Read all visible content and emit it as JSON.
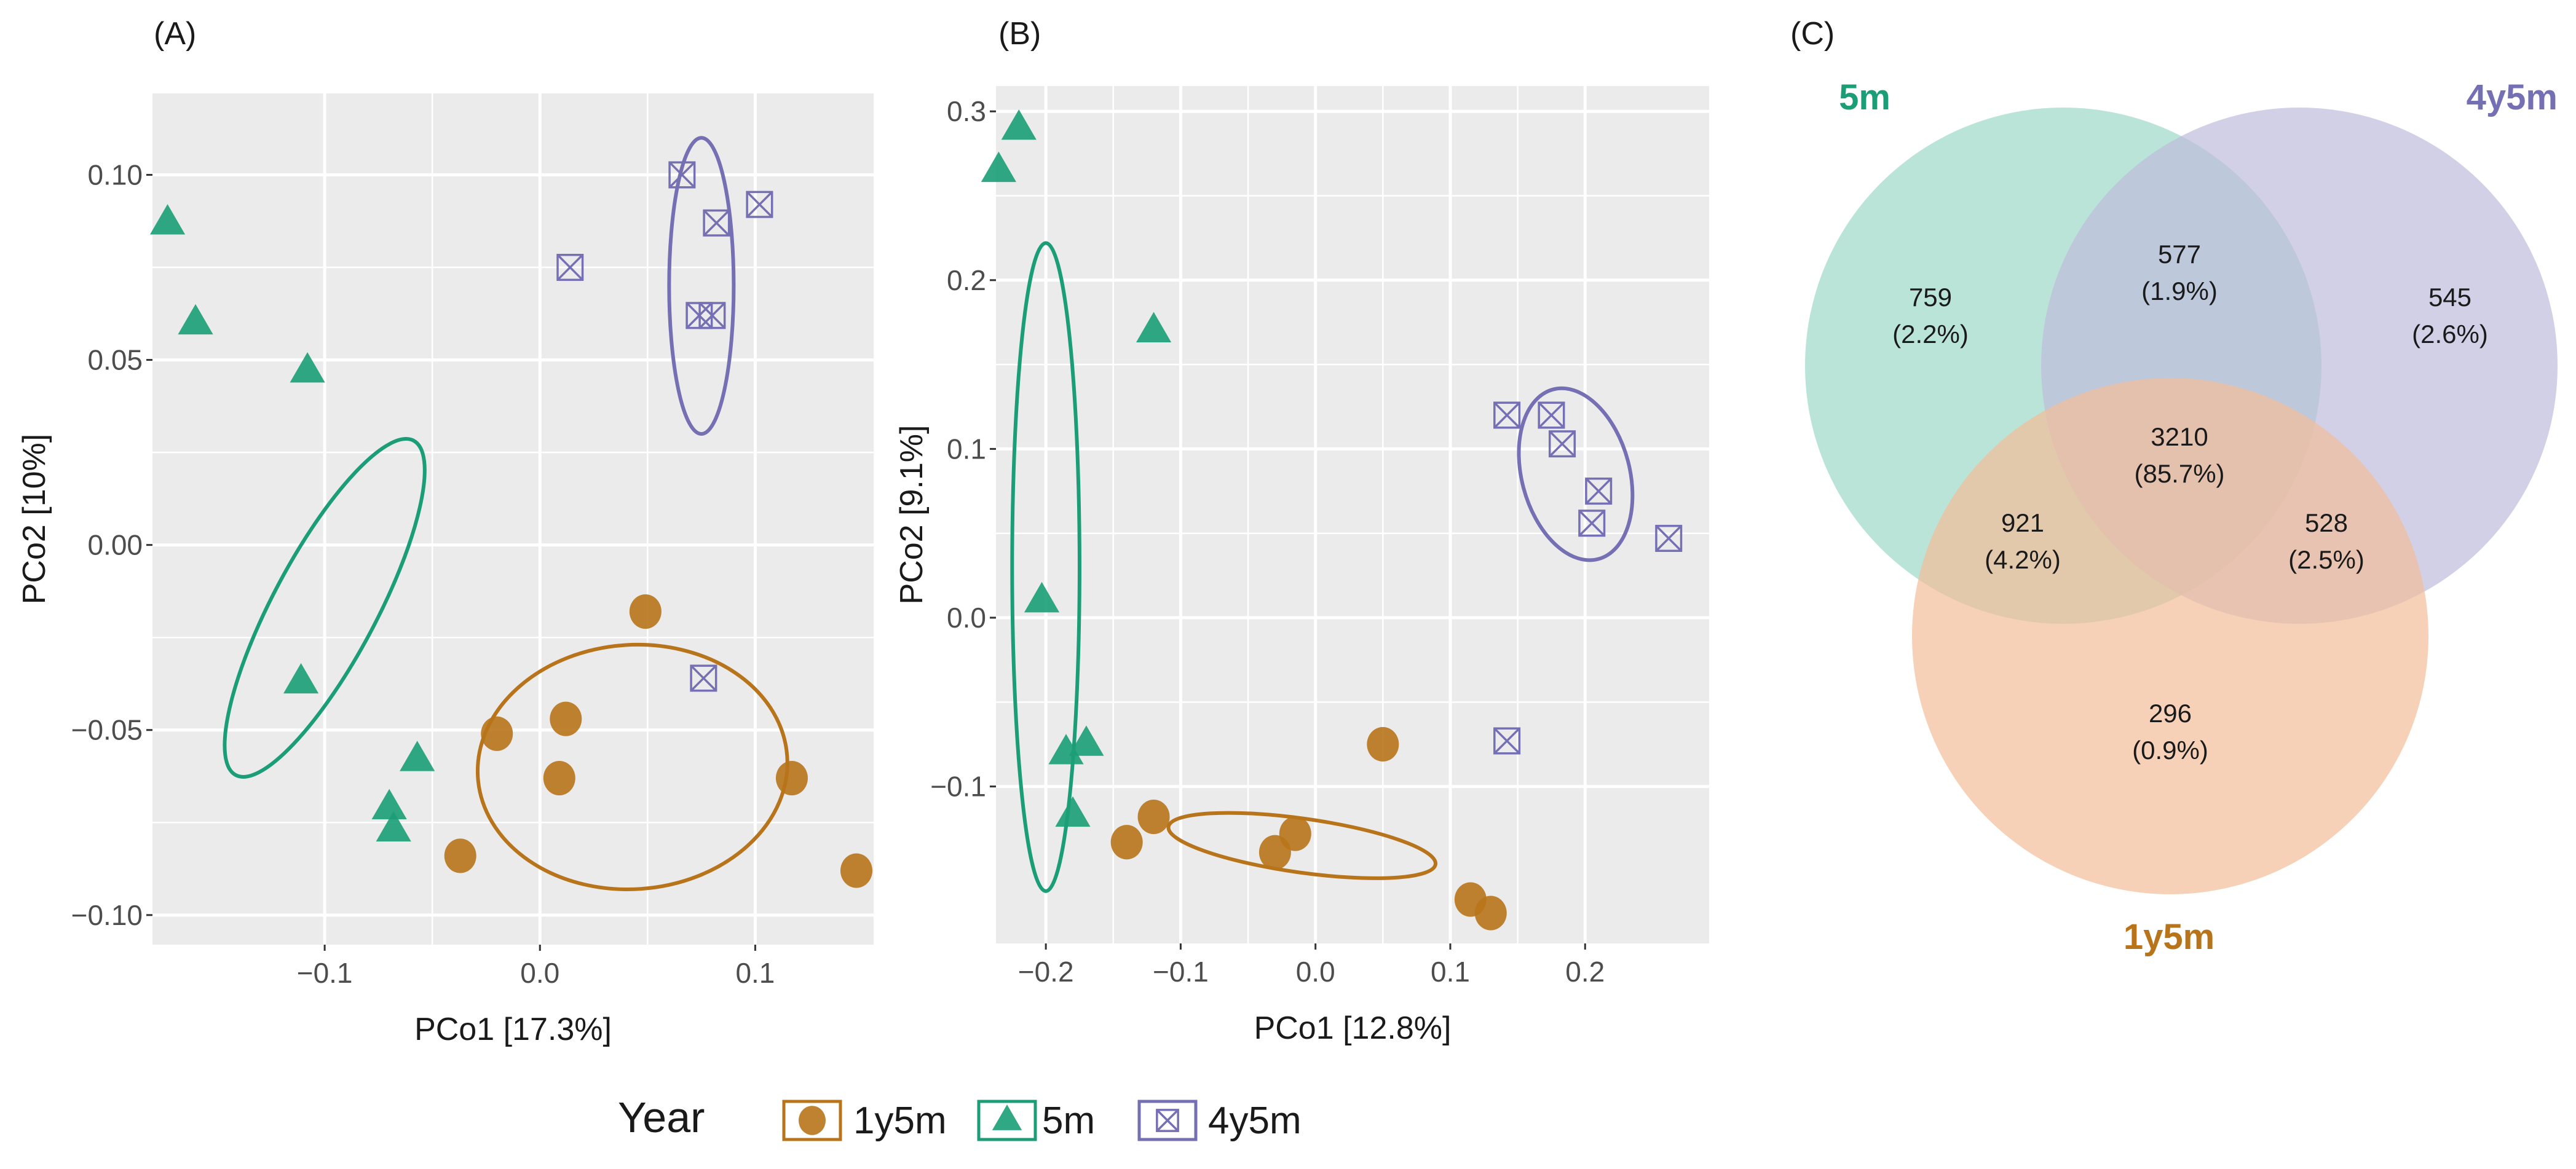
{
  "panels": {
    "a": "(A)",
    "b": "(B)",
    "c": "(C)"
  },
  "colors": {
    "1y5m": "#B8741A",
    "5m": "#1B9E77",
    "4y5m": "#7570B3"
  },
  "legend": {
    "title": "Year",
    "items": [
      "1y5m",
      "5m",
      "4y5m"
    ]
  },
  "chart_data": [
    {
      "type": "scatter",
      "panel": "(A)",
      "xlabel": "PCo1 [17.3%]",
      "ylabel": "PCo2 [10%]",
      "xlim": [
        -0.18,
        0.155
      ],
      "ylim": [
        -0.108,
        0.122
      ],
      "xticks": [
        -0.1,
        0.0,
        0.1
      ],
      "xtick_labels": [
        "−0.1",
        "0.0",
        "0.1"
      ],
      "yticks": [
        -0.1,
        -0.05,
        0.0,
        0.05,
        0.1
      ],
      "ytick_labels": [
        "−0.10",
        "−0.05",
        "0.00",
        "0.05",
        "0.10"
      ],
      "series": [
        {
          "name": "1y5m",
          "shape": "circle",
          "points": [
            [
              0.049,
              -0.018
            ],
            [
              -0.02,
              -0.051
            ],
            [
              0.012,
              -0.047
            ],
            [
              0.009,
              -0.063
            ],
            [
              0.117,
              -0.063
            ],
            [
              -0.037,
              -0.084
            ],
            [
              0.147,
              -0.088
            ]
          ]
        },
        {
          "name": "5m",
          "shape": "triangle",
          "points": [
            [
              -0.173,
              0.087
            ],
            [
              -0.16,
              0.06
            ],
            [
              -0.108,
              0.047
            ],
            [
              -0.111,
              -0.037
            ],
            [
              -0.057,
              -0.058
            ],
            [
              -0.07,
              -0.071
            ],
            [
              -0.068,
              -0.077
            ]
          ]
        },
        {
          "name": "4y5m",
          "shape": "boxx",
          "points": [
            [
              0.066,
              0.1
            ],
            [
              0.102,
              0.092
            ],
            [
              0.082,
              0.087
            ],
            [
              0.014,
              0.075
            ],
            [
              0.074,
              0.062
            ],
            [
              0.08,
              0.062
            ],
            [
              0.076,
              -0.036
            ]
          ]
        }
      ],
      "ellipses": [
        {
          "group": "1y5m",
          "cx": 0.043,
          "cy": -0.06,
          "rx": 0.072,
          "ry": 0.033,
          "angle": -4
        },
        {
          "group": "5m",
          "cx": -0.1,
          "cy": -0.017,
          "rx": 0.088,
          "ry": 0.014,
          "angle": -62
        },
        {
          "group": "4y5m",
          "cx": 0.075,
          "cy": 0.07,
          "rx": 0.015,
          "ry": 0.04,
          "angle": 0
        }
      ]
    },
    {
      "type": "scatter",
      "panel": "(B)",
      "xlabel": "PCo1 [12.8%]",
      "ylabel": "PCo2 [9.1%]",
      "xlim": [
        -0.237,
        0.292
      ],
      "ylim": [
        -0.193,
        0.315
      ],
      "xticks": [
        -0.2,
        -0.1,
        0.0,
        0.1,
        0.2
      ],
      "xtick_labels": [
        "−0.2",
        "−0.1",
        "0.0",
        "0.1",
        "0.2"
      ],
      "yticks": [
        -0.1,
        0.0,
        0.1,
        0.2,
        0.3
      ],
      "ytick_labels": [
        "−0.1",
        "0.0",
        "0.1",
        "0.2",
        "0.3"
      ],
      "series": [
        {
          "name": "1y5m",
          "shape": "circle",
          "points": [
            [
              0.05,
              -0.075
            ],
            [
              -0.12,
              -0.118
            ],
            [
              -0.14,
              -0.133
            ],
            [
              -0.015,
              -0.128
            ],
            [
              -0.03,
              -0.139
            ],
            [
              0.115,
              -0.167
            ],
            [
              0.13,
              -0.175
            ]
          ]
        },
        {
          "name": "5m",
          "shape": "triangle",
          "points": [
            [
              -0.22,
              0.29
            ],
            [
              -0.235,
              0.265
            ],
            [
              -0.12,
              0.17
            ],
            [
              -0.203,
              0.01
            ],
            [
              -0.185,
              -0.08
            ],
            [
              -0.17,
              -0.075
            ],
            [
              -0.18,
              -0.117
            ]
          ]
        },
        {
          "name": "4y5m",
          "shape": "boxx",
          "points": [
            [
              0.142,
              0.12
            ],
            [
              0.175,
              0.12
            ],
            [
              0.183,
              0.103
            ],
            [
              0.21,
              0.075
            ],
            [
              0.205,
              0.056
            ],
            [
              0.262,
              0.047
            ],
            [
              0.142,
              -0.073
            ]
          ]
        }
      ],
      "ellipses": [
        {
          "group": "1y5m",
          "cx": -0.01,
          "cy": -0.135,
          "rx": 0.1,
          "ry": 0.016,
          "angle": 8
        },
        {
          "group": "5m",
          "cx": -0.2,
          "cy": 0.03,
          "rx": 0.025,
          "ry": 0.192,
          "angle": 0
        },
        {
          "group": "4y5m",
          "cx": 0.193,
          "cy": 0.085,
          "rx": 0.04,
          "ry": 0.052,
          "angle": -15
        }
      ]
    },
    {
      "type": "venn",
      "panel": "(C)",
      "sets": [
        {
          "name": "5m",
          "color": "#1B9E77"
        },
        {
          "name": "4y5m",
          "color": "#7570B3"
        },
        {
          "name": "1y5m",
          "color": "#B8741A"
        }
      ],
      "regions": [
        {
          "sets": [
            "5m"
          ],
          "count": "759",
          "pct": "(2.2%)"
        },
        {
          "sets": [
            "5m",
            "4y5m"
          ],
          "count": "577",
          "pct": "(1.9%)"
        },
        {
          "sets": [
            "4y5m"
          ],
          "count": "545",
          "pct": "(2.6%)"
        },
        {
          "sets": [
            "5m",
            "4y5m",
            "1y5m"
          ],
          "count": "3210",
          "pct": "(85.7%)"
        },
        {
          "sets": [
            "5m",
            "1y5m"
          ],
          "count": "921",
          "pct": "(4.2%)"
        },
        {
          "sets": [
            "4y5m",
            "1y5m"
          ],
          "count": "528",
          "pct": "(2.5%)"
        },
        {
          "sets": [
            "1y5m"
          ],
          "count": "296",
          "pct": "(0.9%)"
        }
      ]
    }
  ]
}
